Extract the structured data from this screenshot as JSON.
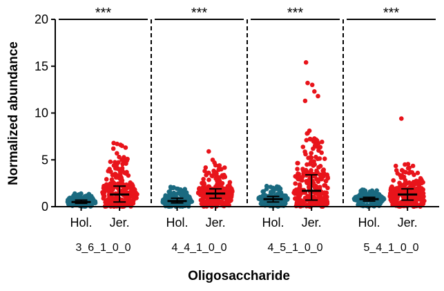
{
  "chart_data": {
    "type": "scatter",
    "subtype": "dot-plot-with-median-iqr",
    "title": "",
    "xlabel": "Oligosaccharide",
    "ylabel": "Normalized abundance",
    "ylim": [
      0,
      20
    ],
    "yticks": [
      0,
      5,
      10,
      15,
      20
    ],
    "grid": false,
    "significance_label": "***",
    "colors": {
      "Hol.": "#1a6a80",
      "Jer.": "#e8141b",
      "summary": "#000000"
    },
    "panels": [
      {
        "name": "3_6_1_0_0",
        "groups": [
          {
            "label": "Hol.",
            "median": 0.5,
            "q1": 0.35,
            "q3": 0.7,
            "max": 1.4,
            "highlights": [
              1.4,
              1.3,
              1.2,
              1.1,
              1.0
            ]
          },
          {
            "label": "Jer.",
            "median": 1.3,
            "q1": 0.5,
            "q3": 2.2,
            "max": 6.8,
            "highlights": [
              6.8,
              6.7,
              6.6,
              6.5,
              6.3,
              6.2,
              5.7,
              5.3,
              5.0,
              4.6,
              4.4,
              4.2,
              4.0,
              3.8,
              3.6,
              3.4,
              3.2,
              3.0,
              2.8
            ]
          }
        ]
      },
      {
        "name": "4_4_1_0_0",
        "groups": [
          {
            "label": "Hol.",
            "median": 0.6,
            "q1": 0.4,
            "q3": 0.9,
            "max": 2.1,
            "highlights": [
              2.1,
              2.0,
              1.9,
              1.7,
              1.5
            ]
          },
          {
            "label": "Jer.",
            "median": 1.4,
            "q1": 0.9,
            "q3": 1.9,
            "max": 5.9,
            "highlights": [
              5.9,
              5.0,
              4.7,
              4.4,
              4.0,
              3.6,
              3.3,
              3.0,
              2.6
            ]
          }
        ]
      },
      {
        "name": "4_5_1_0_0",
        "groups": [
          {
            "label": "Hol.",
            "median": 0.8,
            "q1": 0.5,
            "q3": 1.1,
            "max": 2.2,
            "highlights": [
              2.2,
              2.1,
              2.0,
              1.9,
              1.8
            ]
          },
          {
            "label": "Jer.",
            "median": 1.7,
            "q1": 0.7,
            "q3": 3.4,
            "max": 15.4,
            "highlights": [
              15.4,
              13.2,
              13.0,
              12.3,
              11.8,
              11.3,
              8.1,
              7.2,
              6.5,
              6.0,
              5.6,
              5.2,
              4.8,
              4.5,
              4.2,
              3.9,
              3.6
            ]
          }
        ]
      },
      {
        "name": "5_4_1_0_0",
        "groups": [
          {
            "label": "Hol.",
            "median": 0.8,
            "q1": 0.6,
            "q3": 1.0,
            "max": 1.8,
            "highlights": [
              1.8,
              1.7,
              1.6,
              1.5
            ]
          },
          {
            "label": "Jer.",
            "median": 1.3,
            "q1": 0.7,
            "q3": 1.9,
            "max": 9.4,
            "highlights": [
              9.4,
              4.5,
              4.1,
              3.7,
              3.4,
              3.1,
              2.8,
              2.5
            ]
          }
        ]
      }
    ]
  }
}
